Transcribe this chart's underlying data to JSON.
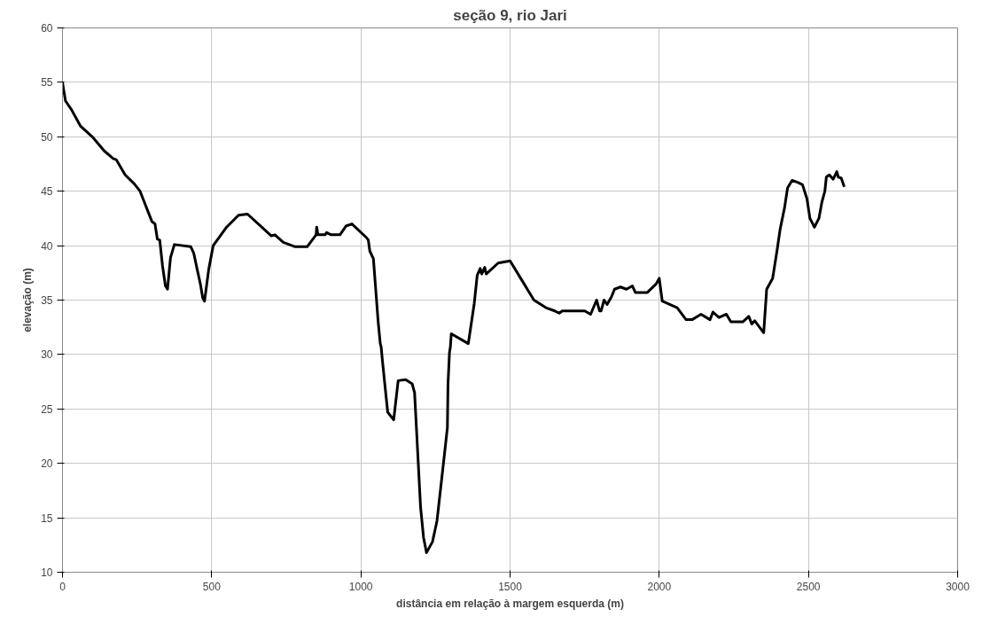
{
  "chart_data": {
    "type": "line",
    "title": "seção 9, rio Jari",
    "xlabel": "distância em relação à margem esquerda (m)",
    "ylabel": "elevação (m)",
    "xlim": [
      0,
      3000
    ],
    "xticks": [
      0,
      500,
      1000,
      1500,
      2000,
      2500,
      3000
    ],
    "ylim": [
      10,
      60
    ],
    "yticks": [
      10,
      15,
      20,
      25,
      30,
      35,
      40,
      45,
      50,
      55,
      60
    ],
    "grid": true,
    "marker": "none",
    "line_style": "solid",
    "series": [
      {
        "color": "#000000",
        "x": [
          0,
          10,
          30,
          60,
          100,
          140,
          170,
          180,
          210,
          240,
          260,
          300,
          310,
          318,
          326,
          335,
          345,
          352,
          362,
          375,
          430,
          440,
          450,
          462,
          470,
          476,
          490,
          505,
          550,
          590,
          620,
          700,
          712,
          740,
          780,
          820,
          850,
          852,
          856,
          880,
          885,
          900,
          930,
          950,
          970,
          1020,
          1025,
          1030,
          1042,
          1058,
          1065,
          1068,
          1072,
          1085,
          1090,
          1110,
          1125,
          1150,
          1172,
          1180,
          1200,
          1210,
          1220,
          1240,
          1255,
          1280,
          1290,
          1292,
          1297,
          1300,
          1303,
          1360,
          1380,
          1390,
          1400,
          1405,
          1415,
          1420,
          1460,
          1500,
          1540,
          1580,
          1620,
          1650,
          1665,
          1675,
          1750,
          1770,
          1790,
          1800,
          1805,
          1815,
          1825,
          1840,
          1850,
          1870,
          1890,
          1910,
          1920,
          1960,
          1990,
          2000,
          2010,
          2060,
          2090,
          2110,
          2140,
          2170,
          2180,
          2200,
          2225,
          2240,
          2280,
          2300,
          2310,
          2320,
          2350,
          2360,
          2380,
          2395,
          2405,
          2420,
          2430,
          2445,
          2465,
          2480,
          2495,
          2505,
          2520,
          2535,
          2545,
          2555,
          2560,
          2570,
          2583,
          2595,
          2600,
          2610,
          2620
        ],
        "values": [
          55,
          53.3,
          52.5,
          51,
          50,
          48.7,
          48,
          47.9,
          46.5,
          45.7,
          45,
          42.2,
          42,
          40.6,
          40.5,
          38.2,
          36.3,
          36,
          38.9,
          40.1,
          39.9,
          39.3,
          38,
          36.5,
          35.2,
          34.9,
          37.8,
          40,
          41.7,
          42.8,
          42.9,
          40.9,
          41,
          40.3,
          39.9,
          39.9,
          41,
          41.7,
          41,
          41,
          41.2,
          41,
          41,
          41.8,
          42,
          40.7,
          40.5,
          39.5,
          38.8,
          33,
          31,
          30.7,
          29.5,
          26,
          24.7,
          24,
          27.6,
          27.7,
          27.3,
          26.5,
          16,
          13.2,
          11.8,
          12.8,
          14.7,
          20.8,
          23.3,
          27.3,
          30.2,
          30.7,
          31.9,
          31,
          34.7,
          37.3,
          37.9,
          37.4,
          38,
          37.4,
          38.4,
          38.6,
          36.8,
          35,
          34.3,
          34,
          33.8,
          34,
          34,
          33.7,
          35,
          34,
          34,
          35,
          34.6,
          35.3,
          36,
          36.2,
          36,
          36.3,
          35.7,
          35.7,
          36.5,
          37,
          34.9,
          34.3,
          33.2,
          33.2,
          33.7,
          33.2,
          33.9,
          33.4,
          33.7,
          33,
          33,
          33.5,
          32.8,
          33.1,
          32.0,
          36,
          37,
          39.6,
          41.5,
          43.5,
          45.3,
          46,
          45.8,
          45.6,
          44.3,
          42.5,
          41.7,
          42.5,
          44,
          45,
          46.3,
          46.5,
          46.1,
          46.8,
          46.3,
          46.2,
          45.4
        ]
      }
    ]
  }
}
